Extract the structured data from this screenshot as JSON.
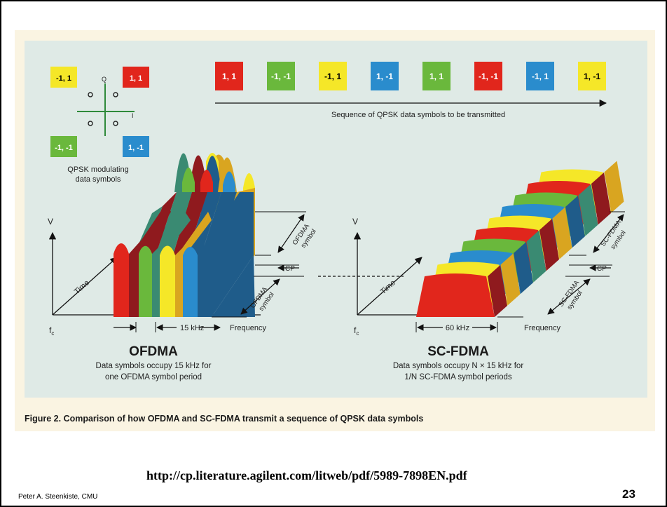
{
  "qpsk": {
    "symbols_legend": [
      {
        "label": "-1, 1",
        "color": "#f5e728"
      },
      {
        "label": "1, 1",
        "color": "#e1261c"
      },
      {
        "label": "-1, -1",
        "color": "#6ab83c"
      },
      {
        "label": "1, -1",
        "color": "#2a8ccd"
      }
    ],
    "axis_q": "Q",
    "axis_i": "I",
    "caption_line1": "QPSK modulating",
    "caption_line2": "data symbols"
  },
  "sequence": {
    "symbols": [
      {
        "label": "1, 1",
        "color": "#e1261c"
      },
      {
        "label": "-1, -1",
        "color": "#6ab83c"
      },
      {
        "label": "-1, 1",
        "color": "#f5e728"
      },
      {
        "label": "1, -1",
        "color": "#2a8ccd"
      },
      {
        "label": "1, 1",
        "color": "#6ab83c"
      },
      {
        "label": "-1, -1",
        "color": "#e1261c"
      },
      {
        "label": "-1, 1",
        "color": "#2a8ccd"
      },
      {
        "label": "1, -1",
        "color": "#f5e728"
      }
    ],
    "arrow_label": "Sequence of QPSK data symbols to be transmitted"
  },
  "ofdma": {
    "v_label": "V",
    "time_label": "Time",
    "fc_label": "f",
    "fc_sub": "c",
    "freq_label": "Frequency",
    "bw_label": "15 kHz",
    "symbol_label_upper_1": "OFDMA",
    "symbol_label_upper_2": "symbol",
    "symbol_label_lower_1": "OFDMA",
    "symbol_label_lower_2": "symbol",
    "cp_label": "CP",
    "title": "OFDMA",
    "desc_line1": "Data symbols occupy 15 kHz for",
    "desc_line2": "one OFDMA symbol period"
  },
  "scfdma": {
    "v_label": "V",
    "time_label": "Time",
    "fc_label": "f",
    "fc_sub": "c",
    "freq_label": "Frequency",
    "bw_label": "60 kHz",
    "symbol_label_upper_1": "SC-FDMA",
    "symbol_label_upper_2": "symbol",
    "symbol_label_lower_1": "SC-FDMA",
    "symbol_label_lower_2": "symbol",
    "cp_label": "CP",
    "title": "SC-FDMA",
    "desc_line1": "Data symbols occupy N × 15 kHz for",
    "desc_line2": "1/N SC-FDMA symbol periods"
  },
  "figure_caption": "Figure 2. Comparison of how OFDMA and SC-FDMA transmit a sequence of QPSK data symbols",
  "url": "http://cp.literature.agilent.com/litweb/pdf/5989-7898EN.pdf",
  "author": "Peter A. Steenkiste, CMU",
  "page_number": "23",
  "colors": {
    "red": "#e1261c",
    "red_dark": "#8f1a1e",
    "green": "#6ab83c",
    "teal": "#3a8a72",
    "yellow": "#f5e728",
    "gold": "#d9a520",
    "blue": "#2a8ccd",
    "navy": "#1f5c8a",
    "panel": "#dfeae6",
    "figure_bg": "#faf4e2"
  }
}
